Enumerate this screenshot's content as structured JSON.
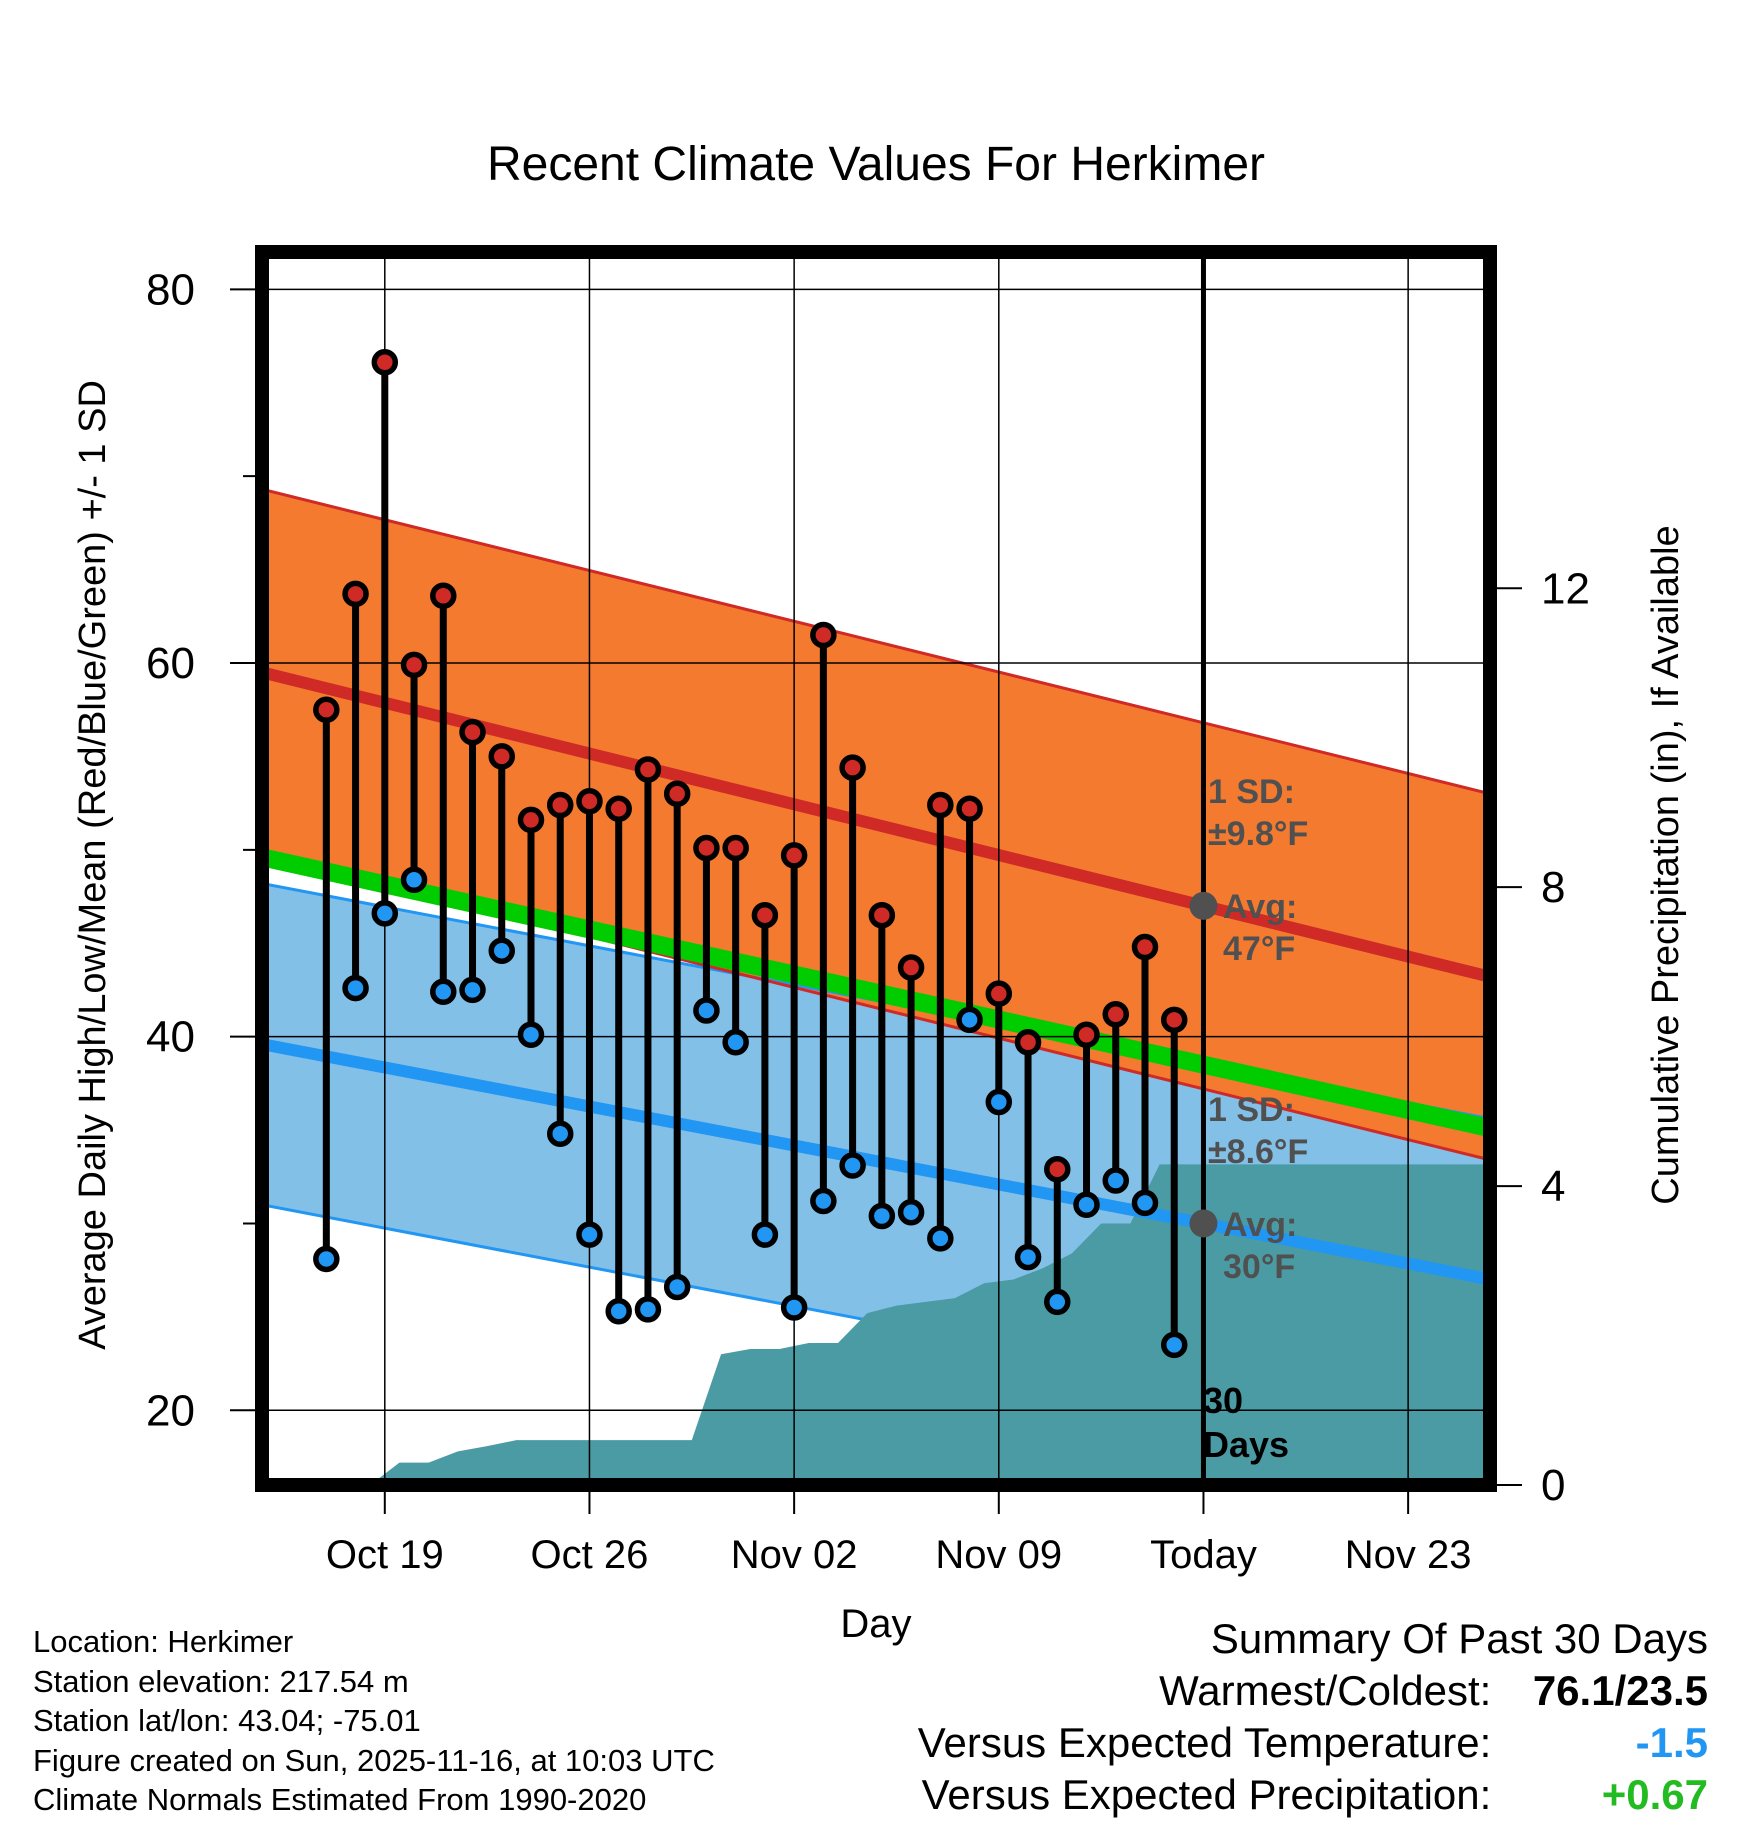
{
  "chart_data": {
    "type": "line",
    "title": "Recent Climate Values For Herkimer",
    "xlabel": "Day",
    "ylabel": "Average Daily High/Low/Mean (Red/Blue/Green) +/- 1 SD",
    "y2label": "Cumulative Precipitation (in), If Available",
    "ylim": [
      16,
      82
    ],
    "y_ticks": [
      20,
      40,
      60,
      80
    ],
    "y2lim": [
      0,
      16.5
    ],
    "y2_ticks": [
      0,
      4,
      8,
      12
    ],
    "x_range_days": [
      -32.2,
      9.8
    ],
    "x_ticks": [
      {
        "day": -28,
        "label": "Oct 19"
      },
      {
        "day": -21,
        "label": "Oct 26"
      },
      {
        "day": -14,
        "label": "Nov 02"
      },
      {
        "day": -7,
        "label": "Nov 09"
      },
      {
        "day": 0,
        "label": "Today"
      },
      {
        "day": 7,
        "label": "Nov 23"
      }
    ],
    "daily_obs": {
      "days": [
        -30,
        -29,
        -28,
        -27,
        -26,
        -25,
        -24,
        -23,
        -22,
        -21,
        -20,
        -19,
        -18,
        -17,
        -16,
        -15,
        -14,
        -13,
        -12,
        -11,
        -10,
        -9,
        -8,
        -7,
        -6,
        -5,
        -4,
        -3,
        -2,
        -1
      ],
      "high": [
        57.5,
        63.7,
        76.1,
        59.9,
        63.6,
        56.3,
        55.0,
        51.6,
        52.4,
        52.6,
        52.2,
        54.3,
        53.0,
        50.1,
        50.1,
        46.5,
        49.7,
        61.5,
        54.4,
        46.5,
        43.7,
        52.4,
        52.2,
        42.3,
        39.7,
        32.9,
        40.1,
        41.2,
        44.8,
        40.9
      ],
      "low": [
        28.1,
        42.6,
        46.6,
        48.4,
        42.4,
        42.5,
        44.6,
        40.1,
        34.8,
        29.4,
        25.3,
        25.4,
        26.6,
        41.4,
        39.7,
        29.4,
        25.5,
        31.2,
        33.1,
        30.4,
        30.6,
        29.2,
        40.9,
        36.5,
        28.2,
        25.8,
        31.0,
        32.3,
        31.1,
        23.5
      ]
    },
    "normals": {
      "high_avg_line": [
        [
          -32.2,
          59.5
        ],
        [
          0,
          47
        ],
        [
          9.8,
          43.2
        ]
      ],
      "high_sd_f": 9.8,
      "low_avg_line": [
        [
          -32.2,
          39.6
        ],
        [
          0,
          30
        ],
        [
          9.8,
          27.0
        ]
      ],
      "low_sd_f": 8.6,
      "mean_line": [
        [
          -32.2,
          49.6
        ],
        [
          0,
          38.5
        ],
        [
          9.8,
          35.1
        ]
      ]
    },
    "precip_cumulative": {
      "days": [
        -30.5,
        -29.5,
        -28.5,
        -27.5,
        -26.5,
        -25.5,
        -24.5,
        -23.5,
        -22.5,
        -21.5,
        -20.5,
        -19.5,
        -18.5,
        -17.5,
        -16.5,
        -15.5,
        -14.5,
        -13.5,
        -12.5,
        -11.5,
        -10.5,
        -9.5,
        -8.5,
        -7.5,
        -6.5,
        -5.5,
        -4.5,
        -3.5,
        -2.5,
        -1.5,
        -0.5,
        9.8
      ],
      "values": [
        0,
        0,
        0,
        0.3,
        0.3,
        0.45,
        0.52,
        0.6,
        0.6,
        0.6,
        0.6,
        0.6,
        0.6,
        0.6,
        1.75,
        1.82,
        1.82,
        1.9,
        1.9,
        2.3,
        2.4,
        2.45,
        2.5,
        2.7,
        2.75,
        2.9,
        3.1,
        3.5,
        3.5,
        4.29,
        4.29,
        4.29
      ]
    },
    "annotations": {
      "high_sd_label": "1 SD:",
      "high_sd_value": "±9.8°F",
      "high_avg_label": "Avg:",
      "high_avg_value": "47°F",
      "low_sd_label": "1 SD:",
      "low_sd_value": "±8.6°F",
      "low_avg_label": "Avg:",
      "low_avg_value": "30°F",
      "window_count": "30",
      "window_unit": "Days"
    },
    "colors": {
      "high_band": "#f47a30",
      "high_line": "#cf2a26",
      "low_band": "#82c0e8",
      "low_line": "#2196f3",
      "mean_line": "#00cc00",
      "precip": "#4a9ba3",
      "high_marker": "#cf2a26",
      "low_marker": "#2196f3",
      "annotation": "#505050"
    }
  },
  "station": {
    "location": "Location: Herkimer",
    "elevation": "Station elevation: 217.54 m",
    "latlon": "Station lat/lon: 43.04; -75.01",
    "created": "Figure created on Sun, 2025-11-16, at 10:03 UTC",
    "normals": "Climate Normals Estimated From 1990-2020"
  },
  "summary": {
    "heading": "Summary Of Past 30 Days",
    "warm_cold_label": "Warmest/Coldest:",
    "warm_cold_value": "76.1/23.5",
    "temp_label": "Versus Expected Temperature:",
    "temp_value": "-1.5",
    "temp_color": "#2196f3",
    "precip_label": "Versus Expected Precipitation:",
    "precip_value": "+0.67",
    "precip_color": "#22bb22"
  }
}
